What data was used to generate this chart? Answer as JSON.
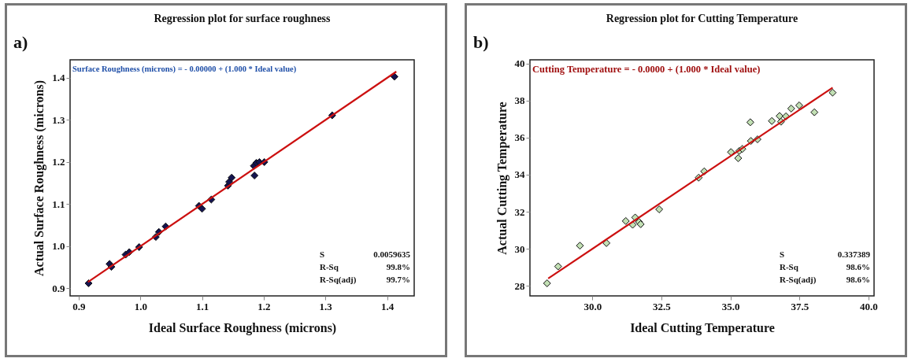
{
  "chart_data": [
    {
      "type": "scatter",
      "title": "Regression plot for surface roughness",
      "xlabel": "Ideal Surface Roughness (microns)",
      "ylabel": "Actual Surface Roughness (microns)",
      "annotations": [
        "a)",
        "Surface Roughness (microns) = - 0.00000 + (1.000 * Ideal value)",
        "S",
        "0.0059635",
        "R-Sq",
        "99.8%",
        "R-Sq(adj)",
        "99.7%"
      ],
      "xlim": [
        0.886,
        1.444
      ],
      "ylim": [
        0.882,
        1.443
      ],
      "xticks": [
        0.9,
        {
          "value": 1,
          "label": "1.0"
        },
        1.1,
        1.2,
        1.3,
        1.4
      ],
      "yticks": [
        0.9,
        {
          "value": 1,
          "label": "1.0"
        },
        1.1,
        1.2,
        1.3,
        1.4
      ],
      "grid": false,
      "series": [
        {
          "marker": "diamond",
          "color": "#141450",
          "x": [
            0.916,
            0.95,
            0.953,
            0.976,
            0.982,
            0.998,
            1.025,
            1.03,
            1.041,
            1.095,
            1.1,
            1.115,
            1.142,
            1.144,
            1.148,
            1.185,
            1.184,
            1.188,
            1.193,
            1.201,
            1.311,
            1.412
          ],
          "values": [
            0.912,
            0.958,
            0.951,
            0.98,
            0.986,
            0.998,
            1.022,
            1.034,
            1.047,
            1.096,
            1.089,
            1.111,
            1.144,
            1.153,
            1.163,
            1.168,
            1.191,
            1.198,
            1.2,
            1.2,
            1.311,
            1.403
          ]
        },
        {
          "type": "line",
          "color": "#cc1010",
          "x": [
            0.915,
            1.415
          ],
          "values": [
            0.915,
            1.415
          ]
        }
      ]
    },
    {
      "type": "scatter",
      "title": "Regression plot for Cutting Temperature",
      "xlabel": "Ideal Cutting Temperature",
      "ylabel": "Actual Cutting Temperature",
      "annotations": [
        "b)",
        "Cutting Temperature = - 0.0000 + (1.000 * Ideal value)",
        "S",
        "0.337389",
        "R-Sq",
        "98.6%",
        "R-Sq(adj)",
        "98.6%"
      ],
      "xlim": [
        27.74,
        40.2
      ],
      "ylim": [
        27.46,
        40.2
      ],
      "xticks": [
        {
          "value": 30,
          "label": "30.0"
        },
        32.5,
        {
          "value": 35,
          "label": "35.0"
        },
        37.5,
        {
          "value": 40,
          "label": "40.0"
        }
      ],
      "yticks": [
        28,
        30,
        32,
        34,
        36,
        38,
        40
      ],
      "grid": false,
      "series": [
        {
          "marker": "diamond",
          "color": "#c2e0b4",
          "x": [
            28.36,
            28.76,
            29.55,
            30.51,
            31.21,
            31.46,
            31.55,
            31.69,
            31.75,
            32.42,
            33.85,
            34.05,
            35.02,
            35.28,
            35.32,
            35.43,
            35.72,
            35.74,
            35.98,
            36.5,
            36.78,
            36.83,
            37.01,
            37.2,
            37.49,
            38.04,
            38.7
          ],
          "values": [
            28.14,
            29.05,
            30.17,
            30.31,
            31.5,
            31.3,
            31.69,
            31.45,
            31.33,
            32.13,
            33.84,
            34.18,
            35.22,
            34.89,
            35.28,
            35.39,
            36.83,
            35.82,
            35.91,
            36.9,
            37.17,
            36.86,
            37.15,
            37.57,
            37.74,
            37.37,
            38.43
          ]
        },
        {
          "type": "line",
          "color": "#cc1010",
          "x": [
            28.4,
            38.7
          ],
          "values": [
            28.4,
            38.7
          ]
        }
      ]
    }
  ]
}
